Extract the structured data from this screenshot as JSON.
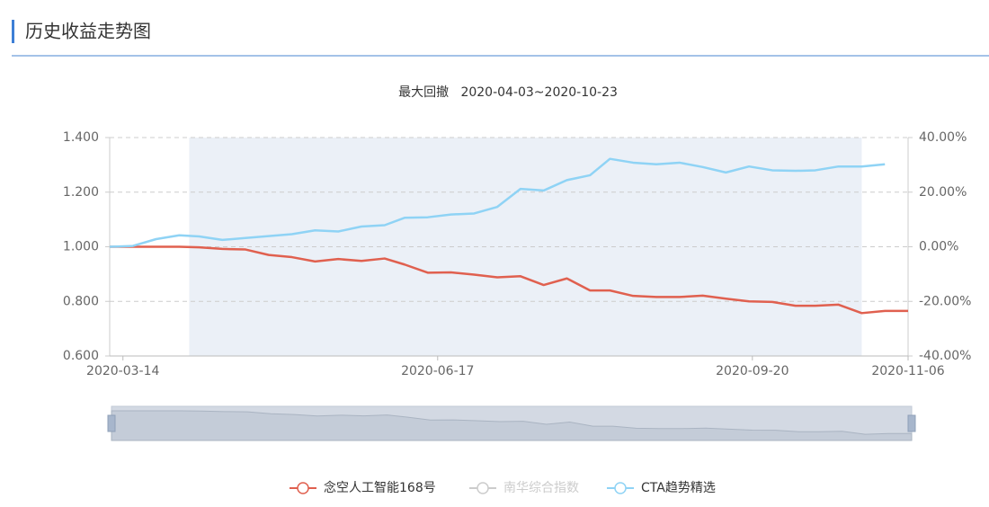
{
  "header": {
    "title": "历史收益走势图"
  },
  "chart_data": {
    "type": "line",
    "subtitle": "最大回撤   2020-04-03~2020-10-23",
    "drawdown": [
      "2020-04-03",
      "2020-10-23"
    ],
    "x": [
      "2020-03-10",
      "2020-03-17",
      "2020-03-24",
      "2020-03-31",
      "2020-04-06",
      "2020-04-13",
      "2020-04-20",
      "2020-04-27",
      "2020-05-04",
      "2020-05-11",
      "2020-05-18",
      "2020-05-25",
      "2020-06-01",
      "2020-06-07",
      "2020-06-14",
      "2020-06-21",
      "2020-06-28",
      "2020-07-05",
      "2020-07-12",
      "2020-07-19",
      "2020-07-26",
      "2020-08-02",
      "2020-08-08",
      "2020-08-15",
      "2020-08-22",
      "2020-08-29",
      "2020-09-05",
      "2020-09-12",
      "2020-09-19",
      "2020-09-26",
      "2020-10-03",
      "2020-10-09",
      "2020-10-16",
      "2020-10-23",
      "2020-10-30",
      "2020-11-06"
    ],
    "series": [
      {
        "name": "念空人工智能168号",
        "color": "#e0604f",
        "hidden": false,
        "values": [
          1.0,
          1.0,
          1.0,
          1.0,
          0.998,
          0.992,
          0.99,
          0.97,
          0.962,
          0.946,
          0.955,
          0.948,
          0.957,
          0.935,
          0.905,
          0.906,
          0.898,
          0.888,
          0.892,
          0.86,
          0.884,
          0.84,
          0.84,
          0.82,
          0.816,
          0.816,
          0.821,
          0.81,
          0.8,
          0.798,
          0.784,
          0.784,
          0.788,
          0.757,
          0.765,
          0.765
        ]
      },
      {
        "name": "南华综合指数",
        "color": "#cccccc",
        "hidden": true,
        "values": [
          null,
          null,
          null,
          null,
          null,
          null,
          null,
          null,
          null,
          null,
          null,
          null,
          null,
          null,
          null,
          null,
          null,
          null,
          null,
          null,
          null,
          null,
          null,
          null,
          null,
          null,
          null,
          null,
          null,
          null,
          null,
          null,
          null,
          null,
          null,
          null
        ]
      },
      {
        "name": "CTA趋势精选",
        "color": "#8fd3f5",
        "hidden": false,
        "values": [
          1.0,
          1.003,
          1.028,
          1.042,
          1.038,
          1.025,
          1.032,
          1.039,
          1.046,
          1.06,
          1.056,
          1.074,
          1.079,
          1.106,
          1.108,
          1.118,
          1.122,
          1.146,
          1.212,
          1.206,
          1.244,
          1.262,
          1.322,
          1.308,
          1.302,
          1.308,
          1.292,
          1.272,
          1.294,
          1.28,
          1.278,
          1.28,
          1.294,
          1.294,
          1.302,
          null
        ]
      }
    ],
    "xlim": [
      "2020-03-10",
      "2020-11-06"
    ],
    "xticks": [
      "2020-03-14",
      "2020-06-17",
      "2020-09-20",
      "2020-11-06"
    ],
    "ylim": [
      0.6,
      1.4
    ],
    "yticks": [
      {
        "value": 0.6,
        "label": "0.600"
      },
      {
        "value": 0.8,
        "label": "0.800"
      },
      {
        "value": 1.0,
        "label": "1.000"
      },
      {
        "value": 1.2,
        "label": "1.200"
      },
      {
        "value": 1.4,
        "label": "1.400"
      }
    ],
    "y2lim": [
      -40,
      40
    ],
    "y2ticks": [
      {
        "value": -40,
        "label": "-40.00%"
      },
      {
        "value": -20,
        "label": "-20.00%"
      },
      {
        "value": 0,
        "label": "0.00%"
      },
      {
        "value": 20,
        "label": "20.00%"
      },
      {
        "value": 40,
        "label": "40.00%"
      }
    ],
    "grid": true,
    "legend": "bottom"
  }
}
